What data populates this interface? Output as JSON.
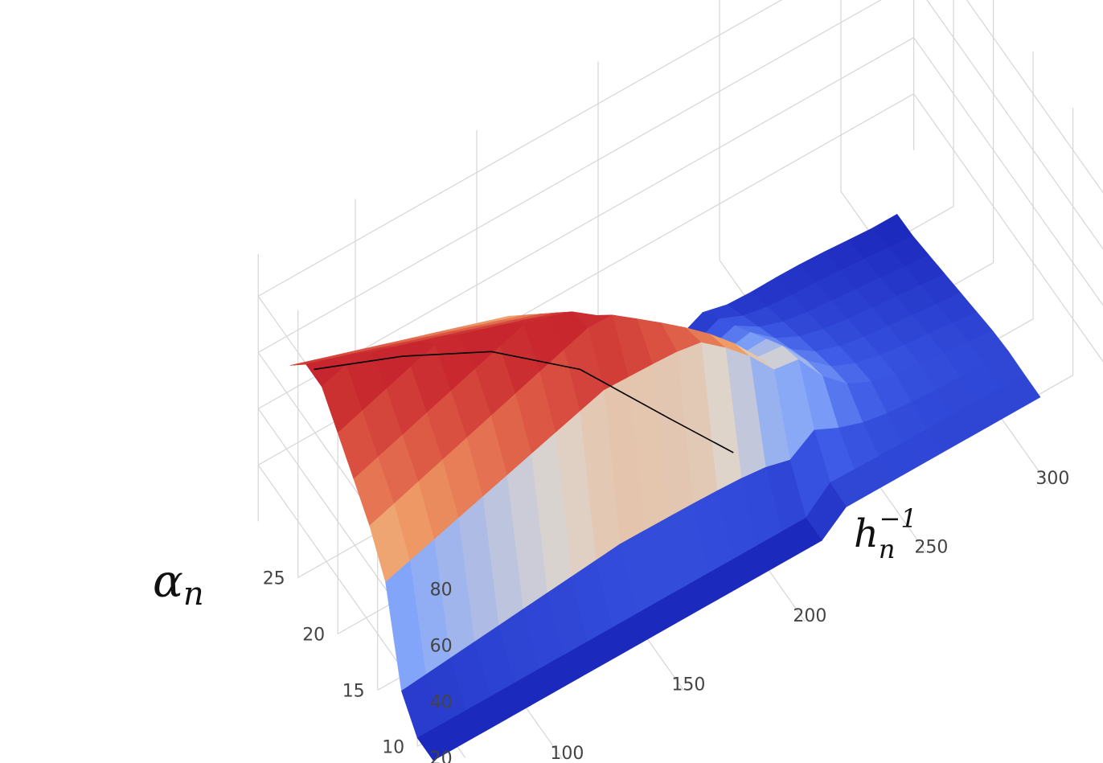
{
  "chart_data": {
    "type": "surface",
    "axes": {
      "x": {
        "title": "h_n^{-1}",
        "ticks": [
          "100",
          "150",
          "200",
          "250",
          "300"
        ]
      },
      "y": {
        "title": "α_n",
        "ticks": [
          "10",
          "15",
          "20",
          "25"
        ]
      },
      "z": {
        "title": "",
        "ticks": [
          "20",
          "40",
          "60",
          "80"
        ]
      }
    },
    "grid": true,
    "legend": "none",
    "colorscale": "coolwarm",
    "colors": {
      "low": "#1a1fb8",
      "mid": "#d9d4cf",
      "high": "#c41f2c"
    },
    "surface_x": [
      60,
      70,
      80,
      90,
      100,
      110,
      120,
      130,
      140,
      150,
      160,
      170,
      180,
      190,
      200,
      210,
      220,
      230,
      240,
      250,
      260,
      270,
      280,
      290,
      300,
      310
    ],
    "surface_y": [
      8,
      10,
      12,
      14,
      16,
      18,
      20,
      22,
      24,
      26
    ],
    "highlight_path": [
      {
        "x": 60,
        "y": 23,
        "z": 82
      },
      {
        "x": 90,
        "y": 21,
        "z": 80
      },
      {
        "x": 120,
        "y": 19,
        "z": 75
      },
      {
        "x": 150,
        "y": 17,
        "z": 62
      },
      {
        "x": 180,
        "y": 15,
        "z": 38
      },
      {
        "x": 200,
        "y": 13,
        "z": 24
      }
    ]
  }
}
